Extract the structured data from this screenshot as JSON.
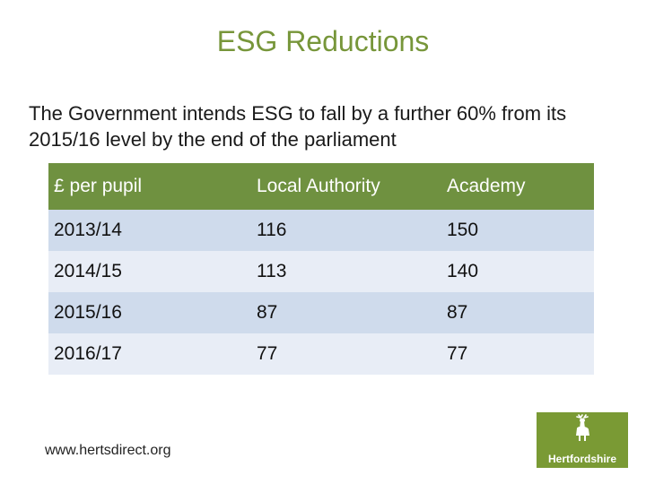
{
  "slide": {
    "title": "ESG Reductions",
    "intro": "The Government intends ESG to fall by a further 60% from its 2015/16 level by the end of the parliament"
  },
  "table": {
    "headers": [
      "£ per pupil",
      "Local Authority",
      "Academy"
    ],
    "rows": [
      [
        "2013/14",
        "116",
        "150"
      ],
      [
        "2014/15",
        "113",
        "140"
      ],
      [
        "2015/16",
        "87",
        "87"
      ],
      [
        "2016/17",
        "77",
        "77"
      ]
    ]
  },
  "footer": {
    "url": "www.hertsdirect.org",
    "logo_text": "Hertfordshire",
    "logo_icon": "hart-stag-icon"
  },
  "colors": {
    "title": "#77963a",
    "header_bg": "#6f9140",
    "row_odd": "#cfdbec",
    "row_even": "#e8edf6",
    "logo_bg": "#7a9a34"
  }
}
